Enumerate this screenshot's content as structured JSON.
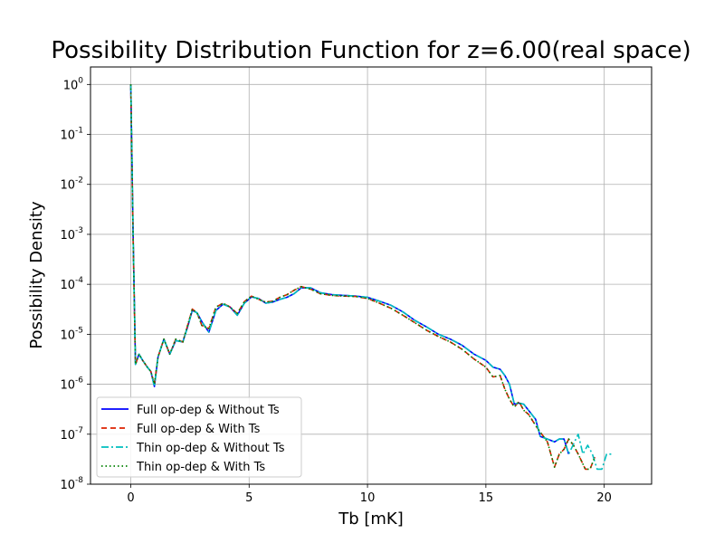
{
  "chart_data": {
    "type": "line",
    "title": "Possibility Distribution Function for z=6.00(real space)",
    "xlabel": "Tb [mK]",
    "ylabel": "Possibility Density",
    "yscale": "log",
    "xlim": [
      -1.7,
      22
    ],
    "ylim_log10": [
      -8.0,
      0.35
    ],
    "xticks": [
      0,
      5,
      10,
      15,
      20
    ],
    "yticks_exponent": [
      0,
      -1,
      -2,
      -3,
      -4,
      -5,
      -6,
      -7,
      -8
    ],
    "grid": true,
    "legend_position": "lower-left",
    "series": [
      {
        "name": "Full op-dep & Without Ts",
        "color": "#0000ff",
        "style": "solid",
        "x": [
          0,
          0.1,
          0.2,
          0.35,
          0.5,
          0.7,
          0.85,
          1.0,
          1.15,
          1.4,
          1.65,
          1.9,
          2.2,
          2.4,
          2.6,
          2.8,
          3.0,
          3.3,
          3.6,
          3.9,
          4.2,
          4.5,
          4.8,
          5.1,
          5.4,
          5.7,
          6.0,
          6.3,
          6.6,
          6.9,
          7.2,
          7.6,
          8.0,
          8.5,
          9.0,
          9.5,
          10.0,
          10.5,
          11.0,
          11.5,
          12.0,
          12.5,
          13.0,
          13.5,
          14.0,
          14.5,
          15.0,
          15.3,
          15.6,
          15.8,
          16.0,
          16.2,
          16.4,
          16.6,
          16.8,
          17.1,
          17.3,
          17.6,
          17.9,
          18.1,
          18.3,
          18.5
        ],
        "y": [
          1.0,
          0.001,
          2.5e-06,
          4e-06,
          3e-06,
          2.2e-06,
          1.8e-06,
          9e-07,
          3.5e-06,
          8e-06,
          4e-06,
          7.5e-06,
          7e-06,
          1.4e-05,
          3e-05,
          2.7e-05,
          1.8e-05,
          1.1e-05,
          3e-05,
          4e-05,
          3.5e-05,
          2.4e-05,
          4.2e-05,
          5.6e-05,
          5.2e-05,
          4.2e-05,
          4.4e-05,
          5e-05,
          5.5e-05,
          6.5e-05,
          8.5e-05,
          8.5e-05,
          6.8e-05,
          6.2e-05,
          6e-05,
          5.8e-05,
          5.5e-05,
          4.6e-05,
          3.8e-05,
          2.8e-05,
          1.9e-05,
          1.4e-05,
          1e-05,
          8e-06,
          6e-06,
          4e-06,
          3e-06,
          2.2e-06,
          2e-06,
          1.5e-06,
          1e-06,
          4e-07,
          4.2e-07,
          4e-07,
          3e-07,
          2e-07,
          9e-08,
          8e-08,
          7e-08,
          8e-08,
          8e-08,
          4e-08
        ]
      },
      {
        "name": "Full op-dep & With Ts",
        "color": "#dd2200",
        "style": "dashed",
        "x": [
          0,
          0.1,
          0.2,
          0.35,
          0.5,
          0.7,
          0.85,
          1.0,
          1.15,
          1.4,
          1.65,
          1.9,
          2.2,
          2.4,
          2.6,
          2.8,
          3.0,
          3.3,
          3.6,
          3.9,
          4.2,
          4.5,
          4.8,
          5.1,
          5.4,
          5.7,
          6.0,
          6.3,
          6.6,
          6.9,
          7.2,
          7.6,
          8.0,
          8.5,
          9.0,
          9.5,
          10.0,
          10.5,
          11.0,
          11.5,
          12.0,
          12.5,
          13.0,
          13.5,
          14.0,
          14.5,
          15.0,
          15.3,
          15.6,
          15.8,
          16.0,
          16.2,
          16.4,
          16.6,
          16.8,
          17.1,
          17.3,
          17.6,
          17.9,
          18.1,
          18.3,
          18.5,
          18.7,
          18.9,
          19.2,
          19.4,
          19.6
        ],
        "y": [
          1.0,
          0.0008,
          2.5e-06,
          4e-06,
          3e-06,
          2.2e-06,
          1.8e-06,
          1e-06,
          3.5e-06,
          8e-06,
          4e-06,
          8e-06,
          7e-06,
          1.5e-05,
          3.2e-05,
          2.7e-05,
          1.5e-05,
          1.3e-05,
          3.5e-05,
          4.2e-05,
          3.5e-05,
          2.6e-05,
          4.5e-05,
          5.8e-05,
          5e-05,
          4.4e-05,
          4.6e-05,
          5.5e-05,
          6.2e-05,
          7.6e-05,
          9e-05,
          8e-05,
          6.5e-05,
          6e-05,
          5.8e-05,
          5.7e-05,
          5.2e-05,
          4.2e-05,
          3.3e-05,
          2.4e-05,
          1.7e-05,
          1.2e-05,
          9e-06,
          7e-06,
          5e-06,
          3.2e-06,
          2.2e-06,
          1.4e-06,
          1.5e-06,
          8e-07,
          5e-07,
          3.5e-07,
          4.5e-07,
          3e-07,
          2.5e-07,
          1.5e-07,
          1.1e-07,
          7e-08,
          2.2e-08,
          4e-08,
          5e-08,
          8e-08,
          6e-08,
          4e-08,
          2e-08,
          2e-08,
          3.5e-08
        ]
      },
      {
        "name": "Thin op-dep & Without Ts",
        "color": "#00bfbf",
        "style": "dashdot",
        "x": [
          0,
          0.1,
          0.2,
          0.35,
          0.5,
          0.7,
          0.85,
          1.0,
          1.15,
          1.4,
          1.65,
          1.9,
          2.2,
          2.4,
          2.6,
          2.8,
          3.0,
          3.3,
          3.6,
          3.9,
          4.2,
          4.5,
          4.8,
          5.1,
          5.4,
          5.7,
          6.0,
          6.3,
          6.6,
          6.9,
          7.2,
          7.6,
          8.0,
          8.5,
          9.0,
          9.5,
          10.0,
          10.5,
          11.0,
          11.5,
          12.0,
          12.5,
          13.0,
          13.5,
          14.0,
          14.5,
          15.0,
          15.3,
          15.6,
          15.8,
          16.0,
          16.2,
          16.4,
          16.6,
          16.8,
          17.1,
          17.3,
          17.6,
          17.9,
          18.1,
          18.3,
          18.5,
          18.9,
          19.1,
          19.3,
          19.5,
          19.7,
          19.9,
          20.1,
          20.3
        ],
        "y": [
          1.0,
          0.001,
          2.5e-06,
          4e-06,
          3e-06,
          2.2e-06,
          1.8e-06,
          9e-07,
          3.5e-06,
          8e-06,
          4e-06,
          7.5e-06,
          7e-06,
          1.4e-05,
          3e-05,
          2.7e-05,
          1.8e-05,
          1.1e-05,
          3e-05,
          4e-05,
          3.5e-05,
          2.4e-05,
          4.2e-05,
          5.6e-05,
          5.2e-05,
          4.2e-05,
          4.4e-05,
          5e-05,
          5.5e-05,
          6.5e-05,
          8.5e-05,
          8.5e-05,
          6.8e-05,
          6.2e-05,
          6e-05,
          5.8e-05,
          5.5e-05,
          4.6e-05,
          3.8e-05,
          2.8e-05,
          1.9e-05,
          1.4e-05,
          1e-05,
          8e-06,
          6e-06,
          4e-06,
          3e-06,
          2.2e-06,
          2e-06,
          1.5e-06,
          1e-06,
          4e-07,
          4.2e-07,
          4e-07,
          3e-07,
          2e-07,
          9e-08,
          8e-08,
          7e-08,
          8e-08,
          8e-08,
          4e-08,
          1e-07,
          4e-08,
          6e-08,
          4e-08,
          2e-08,
          2e-08,
          4e-08,
          4e-08
        ]
      },
      {
        "name": "Thin op-dep & With Ts",
        "color": "#008000",
        "style": "dotted",
        "x": [
          0,
          0.1,
          0.2,
          0.35,
          0.5,
          0.7,
          0.85,
          1.0,
          1.15,
          1.4,
          1.65,
          1.9,
          2.2,
          2.4,
          2.6,
          2.8,
          3.0,
          3.3,
          3.6,
          3.9,
          4.2,
          4.5,
          4.8,
          5.1,
          5.4,
          5.7,
          6.0,
          6.3,
          6.6,
          6.9,
          7.2,
          7.6,
          8.0,
          8.5,
          9.0,
          9.5,
          10.0,
          10.5,
          11.0,
          11.5,
          12.0,
          12.5,
          13.0,
          13.5,
          14.0,
          14.5,
          15.0,
          15.3,
          15.6,
          15.8,
          16.0,
          16.2,
          16.4,
          16.6,
          16.8,
          17.1,
          17.3,
          17.6,
          17.9,
          18.1,
          18.3,
          18.5,
          18.7,
          18.9,
          19.2,
          19.4,
          19.6
        ],
        "y": [
          1.0,
          0.0008,
          2.5e-06,
          4e-06,
          3e-06,
          2.2e-06,
          1.8e-06,
          1e-06,
          3.5e-06,
          8e-06,
          4e-06,
          8e-06,
          7e-06,
          1.5e-05,
          3.2e-05,
          2.7e-05,
          1.5e-05,
          1.3e-05,
          3.5e-05,
          4.2e-05,
          3.5e-05,
          2.6e-05,
          4.5e-05,
          5.8e-05,
          5e-05,
          4.4e-05,
          4.6e-05,
          5.5e-05,
          6.2e-05,
          7.6e-05,
          9e-05,
          8e-05,
          6.5e-05,
          6e-05,
          5.8e-05,
          5.7e-05,
          5.2e-05,
          4.2e-05,
          3.3e-05,
          2.4e-05,
          1.7e-05,
          1.2e-05,
          9e-06,
          7e-06,
          5e-06,
          3.2e-06,
          2.2e-06,
          1.4e-06,
          1.5e-06,
          8e-07,
          5e-07,
          3.5e-07,
          4.5e-07,
          3e-07,
          2.5e-07,
          1.5e-07,
          1.1e-07,
          7e-08,
          2.2e-08,
          4e-08,
          5e-08,
          8e-08,
          6e-08,
          4e-08,
          2e-08,
          2e-08,
          3.5e-08
        ]
      }
    ]
  }
}
